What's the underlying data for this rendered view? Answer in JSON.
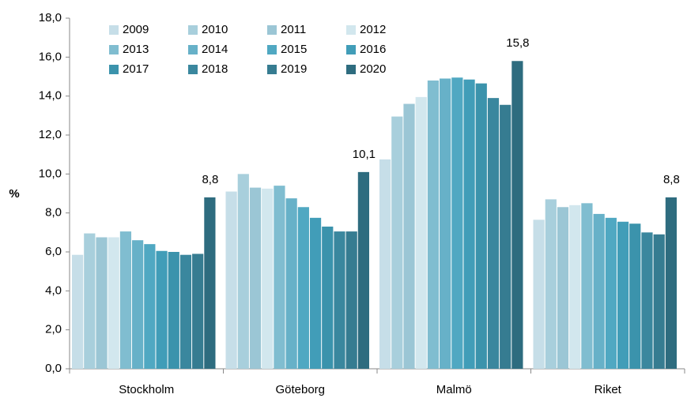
{
  "chart_data": {
    "type": "bar",
    "y_label": "%",
    "categories": [
      "Stockholm",
      "Göteborg",
      "Malmö",
      "Riket"
    ],
    "series": [
      {
        "name": "2009",
        "color": "#c6dee8",
        "values": [
          5.85,
          9.1,
          10.75,
          7.65
        ]
      },
      {
        "name": "2010",
        "color": "#a8cfdc",
        "values": [
          6.95,
          10.0,
          12.95,
          8.7
        ]
      },
      {
        "name": "2011",
        "color": "#9bc6d5",
        "values": [
          6.75,
          9.3,
          13.6,
          8.3
        ]
      },
      {
        "name": "2012",
        "color": "#d2e7ee",
        "values": [
          6.75,
          9.25,
          13.95,
          8.4
        ]
      },
      {
        "name": "2013",
        "color": "#80bdd0",
        "values": [
          7.05,
          9.4,
          14.8,
          8.5
        ]
      },
      {
        "name": "2014",
        "color": "#67b1c8",
        "values": [
          6.6,
          8.75,
          14.9,
          7.95
        ]
      },
      {
        "name": "2015",
        "color": "#50a8c2",
        "values": [
          6.4,
          8.3,
          14.95,
          7.75
        ]
      },
      {
        "name": "2016",
        "color": "#419db8",
        "values": [
          6.05,
          7.75,
          14.85,
          7.55
        ]
      },
      {
        "name": "2017",
        "color": "#3b93ac",
        "values": [
          6.0,
          7.3,
          14.65,
          7.45
        ]
      },
      {
        "name": "2018",
        "color": "#3a879e",
        "values": [
          5.85,
          7.05,
          13.9,
          7.0
        ]
      },
      {
        "name": "2019",
        "color": "#367c91",
        "values": [
          5.9,
          7.05,
          13.55,
          6.9
        ]
      },
      {
        "name": "2020",
        "color": "#2e6c7f",
        "values": [
          8.8,
          10.1,
          15.8,
          8.8
        ],
        "value_labels": [
          "8,8",
          "10,1",
          "15,8",
          "8,8"
        ]
      }
    ],
    "ylim": [
      0,
      18
    ],
    "yticks": [
      {
        "value": 0,
        "label": "0,0"
      },
      {
        "value": 2,
        "label": "2,0"
      },
      {
        "value": 4,
        "label": "4,0"
      },
      {
        "value": 6,
        "label": "6,0"
      },
      {
        "value": 8,
        "label": "8,0"
      },
      {
        "value": 10,
        "label": "10,0"
      },
      {
        "value": 12,
        "label": "12,0"
      },
      {
        "value": 14,
        "label": "14,0"
      },
      {
        "value": 16,
        "label": "16,0"
      },
      {
        "value": 18,
        "label": "18,0"
      }
    ]
  }
}
